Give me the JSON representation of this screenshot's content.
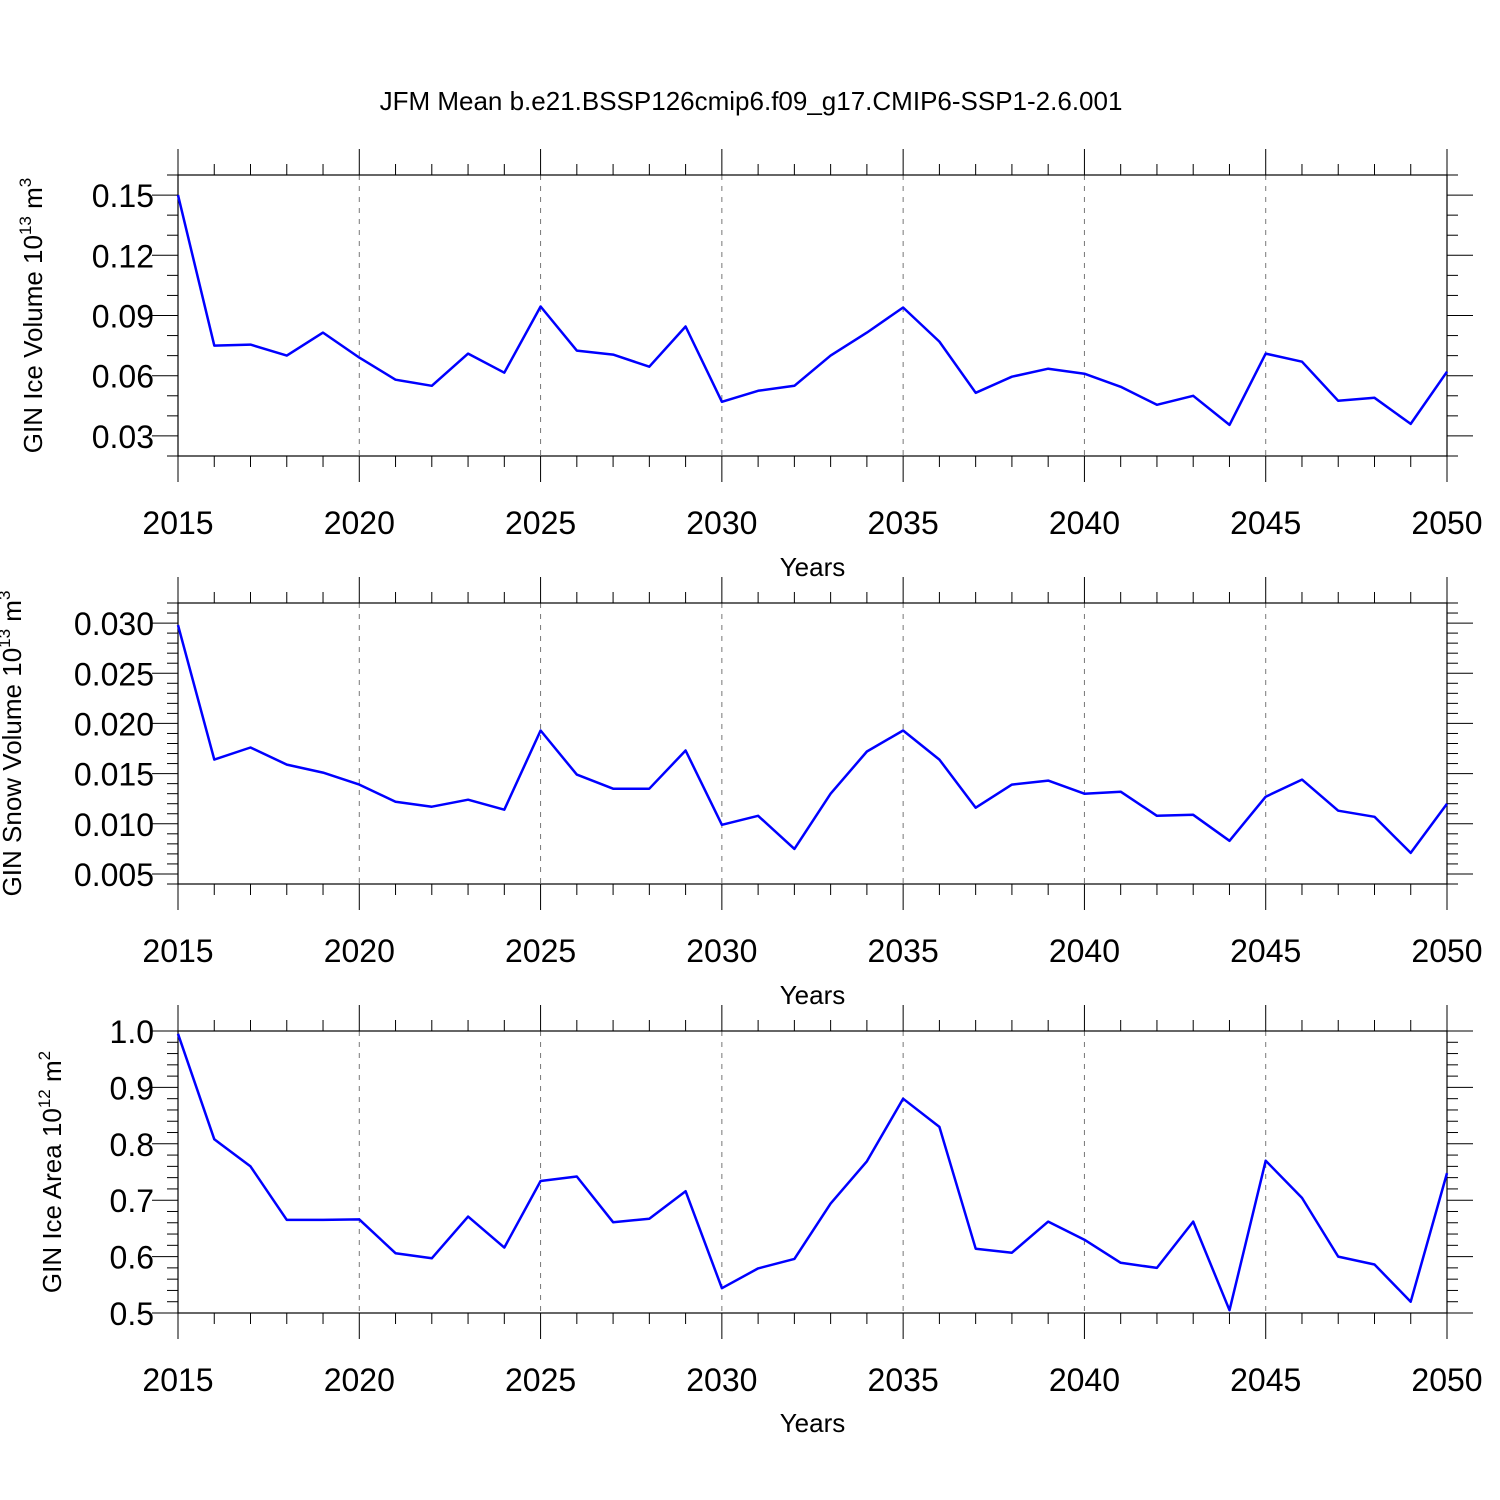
{
  "figure_title": "JFM Mean b.e21.BSSP126cmip6.f09_g17.CMIP6-SSP1-2.6.001",
  "colors": {
    "line": "#0000ff",
    "axis": "#000000",
    "grid": "#777777"
  },
  "chart_data": [
    {
      "type": "line",
      "ylabel_main": "GIN Ice Volume 10",
      "ylabel_exp": "13",
      "ylabel_unit": "m",
      "ylabel_unit_exp": "3",
      "xlabel": "Years",
      "xlim": [
        2015,
        2050
      ],
      "ylim": [
        0.02,
        0.16
      ],
      "xticks": [
        2015,
        2020,
        2025,
        2030,
        2035,
        2040,
        2045,
        2050
      ],
      "xtick_labels": [
        "2015",
        "2020",
        "2025",
        "2030",
        "2035",
        "2040",
        "2045",
        "2050"
      ],
      "yticks": [
        0.03,
        0.06,
        0.09,
        0.12,
        0.15
      ],
      "ytick_labels": [
        "0.03",
        "0.06",
        "0.09",
        "0.12",
        "0.15"
      ],
      "yminor_step": 0.01,
      "x": [
        2015,
        2016,
        2017,
        2018,
        2019,
        2020,
        2021,
        2022,
        2023,
        2024,
        2025,
        2026,
        2027,
        2028,
        2029,
        2030,
        2031,
        2032,
        2033,
        2034,
        2035,
        2036,
        2037,
        2038,
        2039,
        2040,
        2041,
        2042,
        2043,
        2044,
        2045,
        2046,
        2047,
        2048,
        2049,
        2050
      ],
      "values": [
        0.15,
        0.075,
        0.0755,
        0.07,
        0.0815,
        0.069,
        0.058,
        0.055,
        0.071,
        0.0615,
        0.0945,
        0.0725,
        0.0705,
        0.0645,
        0.0845,
        0.047,
        0.0525,
        0.055,
        0.07,
        0.0815,
        0.094,
        0.077,
        0.0515,
        0.0595,
        0.0635,
        0.061,
        0.0545,
        0.0455,
        0.05,
        0.0355,
        0.071,
        0.067,
        0.0475,
        0.049,
        0.036,
        0.062
      ]
    },
    {
      "type": "line",
      "ylabel_main": "GIN Snow Volume 10",
      "ylabel_exp": "13",
      "ylabel_unit": "m",
      "ylabel_unit_exp": "3",
      "xlabel": "Years",
      "xlim": [
        2015,
        2050
      ],
      "ylim": [
        0.004,
        0.032
      ],
      "xticks": [
        2015,
        2020,
        2025,
        2030,
        2035,
        2040,
        2045,
        2050
      ],
      "xtick_labels": [
        "2015",
        "2020",
        "2025",
        "2030",
        "2035",
        "2040",
        "2045",
        "2050"
      ],
      "yticks": [
        0.005,
        0.01,
        0.015,
        0.02,
        0.025,
        0.03
      ],
      "ytick_labels": [
        "0.005",
        "0.010",
        "0.015",
        "0.020",
        "0.025",
        "0.030"
      ],
      "yminor_step": 0.001,
      "x": [
        2015,
        2016,
        2017,
        2018,
        2019,
        2020,
        2021,
        2022,
        2023,
        2024,
        2025,
        2026,
        2027,
        2028,
        2029,
        2030,
        2031,
        2032,
        2033,
        2034,
        2035,
        2036,
        2037,
        2038,
        2039,
        2040,
        2041,
        2042,
        2043,
        2044,
        2045,
        2046,
        2047,
        2048,
        2049,
        2050
      ],
      "values": [
        0.0298,
        0.0164,
        0.0176,
        0.0159,
        0.0151,
        0.0139,
        0.0122,
        0.0117,
        0.0124,
        0.0114,
        0.0193,
        0.0149,
        0.0135,
        0.0135,
        0.0173,
        0.0099,
        0.0108,
        0.0075,
        0.013,
        0.0172,
        0.0193,
        0.0164,
        0.0116,
        0.0139,
        0.0143,
        0.013,
        0.0132,
        0.0108,
        0.0109,
        0.0083,
        0.0127,
        0.0144,
        0.0113,
        0.0107,
        0.0071,
        0.012
      ]
    },
    {
      "type": "line",
      "ylabel_main": "GIN Ice Area 10",
      "ylabel_exp": "12",
      "ylabel_unit": "m",
      "ylabel_unit_exp": "2",
      "xlabel": "Years",
      "xlim": [
        2015,
        2050
      ],
      "ylim": [
        0.5,
        1.0
      ],
      "xticks": [
        2015,
        2020,
        2025,
        2030,
        2035,
        2040,
        2045,
        2050
      ],
      "xtick_labels": [
        "2015",
        "2020",
        "2025",
        "2030",
        "2035",
        "2040",
        "2045",
        "2050"
      ],
      "yticks": [
        0.5,
        0.6,
        0.7,
        0.8,
        0.9,
        1.0
      ],
      "ytick_labels": [
        "0.5",
        "0.6",
        "0.7",
        "0.8",
        "0.9",
        "1.0"
      ],
      "yminor_step": 0.02,
      "x": [
        2015,
        2016,
        2017,
        2018,
        2019,
        2020,
        2021,
        2022,
        2023,
        2024,
        2025,
        2026,
        2027,
        2028,
        2029,
        2030,
        2031,
        2032,
        2033,
        2034,
        2035,
        2036,
        2037,
        2038,
        2039,
        2040,
        2041,
        2042,
        2043,
        2044,
        2045,
        2046,
        2047,
        2048,
        2049,
        2050
      ],
      "values": [
        0.995,
        0.808,
        0.76,
        0.665,
        0.665,
        0.666,
        0.606,
        0.597,
        0.671,
        0.616,
        0.734,
        0.742,
        0.661,
        0.667,
        0.716,
        0.544,
        0.579,
        0.596,
        0.694,
        0.769,
        0.88,
        0.83,
        0.614,
        0.607,
        0.662,
        0.63,
        0.589,
        0.58,
        0.662,
        0.505,
        0.77,
        0.704,
        0.6,
        0.586,
        0.52,
        0.748
      ]
    }
  ]
}
